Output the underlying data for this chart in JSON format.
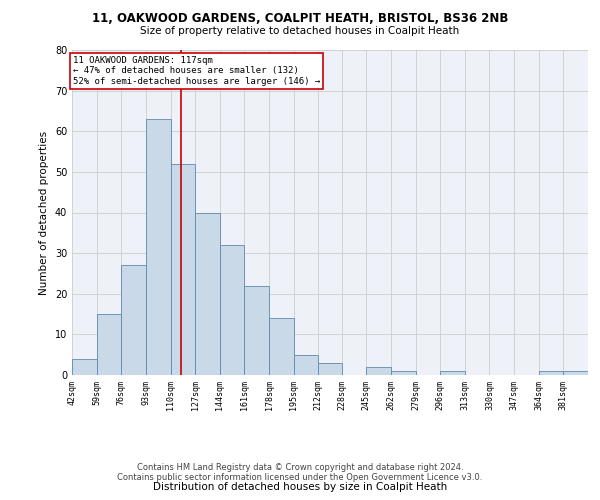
{
  "title1": "11, OAKWOOD GARDENS, COALPIT HEATH, BRISTOL, BS36 2NB",
  "title2": "Size of property relative to detached houses in Coalpit Heath",
  "xlabel": "Distribution of detached houses by size in Coalpit Heath",
  "ylabel": "Number of detached properties",
  "bin_labels": [
    "42sqm",
    "59sqm",
    "76sqm",
    "93sqm",
    "110sqm",
    "127sqm",
    "144sqm",
    "161sqm",
    "178sqm",
    "195sqm",
    "212sqm",
    "228sqm",
    "245sqm",
    "262sqm",
    "279sqm",
    "296sqm",
    "313sqm",
    "330sqm",
    "347sqm",
    "364sqm",
    "381sqm"
  ],
  "bin_edges": [
    42,
    59,
    76,
    93,
    110,
    127,
    144,
    161,
    178,
    195,
    212,
    228,
    245,
    262,
    279,
    296,
    313,
    330,
    347,
    364,
    381,
    398
  ],
  "values": [
    4,
    15,
    27,
    63,
    52,
    40,
    32,
    22,
    14,
    5,
    3,
    0,
    2,
    1,
    0,
    1,
    0,
    0,
    0,
    1,
    1
  ],
  "bar_color": "#c9d9e8",
  "bar_edge_color": "#5a8ab0",
  "grid_color": "#cccccc",
  "bg_color": "#eef2f8",
  "vline_x": 117,
  "vline_color": "#cc0000",
  "annotation_text": "11 OAKWOOD GARDENS: 117sqm\n← 47% of detached houses are smaller (132)\n52% of semi-detached houses are larger (146) →",
  "annotation_box_color": "white",
  "annotation_box_edge": "#cc0000",
  "ylim": [
    0,
    80
  ],
  "yticks": [
    0,
    10,
    20,
    30,
    40,
    50,
    60,
    70,
    80
  ],
  "footer1": "Contains HM Land Registry data © Crown copyright and database right 2024.",
  "footer2": "Contains public sector information licensed under the Open Government Licence v3.0."
}
